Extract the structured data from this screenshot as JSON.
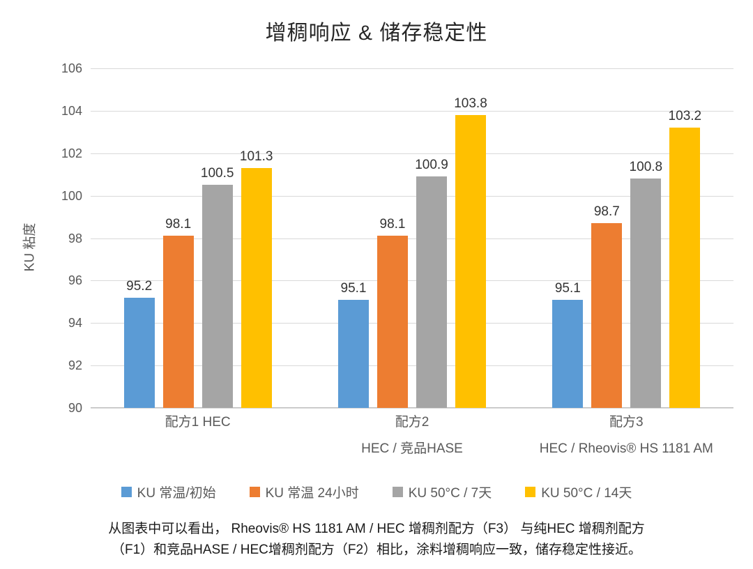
{
  "chart_data": {
    "type": "bar",
    "title": "增稠响应 & 储存稳定性",
    "xlabel": "",
    "ylabel": "KU 粘度",
    "ylim": [
      90,
      106
    ],
    "yticks": [
      90,
      92,
      94,
      96,
      98,
      100,
      102,
      104,
      106
    ],
    "grid": true,
    "legend_position": "bottom",
    "categories": [
      {
        "line1": "配方1  HEC",
        "line2": ""
      },
      {
        "line1": "配方2",
        "line2": "HEC / 竞品HASE"
      },
      {
        "line1": "配方3",
        "line2": "HEC / Rheovis® HS 1181 AM"
      }
    ],
    "series": [
      {
        "name": "KU 常温/初始",
        "color": "#5B9BD5",
        "values": [
          95.2,
          95.1,
          95.1
        ]
      },
      {
        "name": "KU 常温 24小时",
        "color": "#ED7D31",
        "values": [
          98.1,
          98.1,
          98.7
        ]
      },
      {
        "name": "KU 50°C / 7天",
        "color": "#A5A5A5",
        "values": [
          100.5,
          100.9,
          100.8
        ]
      },
      {
        "name": "KU 50°C / 14天",
        "color": "#FFC000",
        "values": [
          101.3,
          103.8,
          103.2
        ]
      }
    ]
  },
  "footer": {
    "line1": "从图表中可以看出， Rheovis® HS 1181 AM / HEC 增稠剂配方（F3） 与纯HEC 增稠剂配方",
    "line2": "（F1）和竞品HASE / HEC增稠剂配方（F2）相比，涂料增稠响应一致，储存稳定性接近。"
  }
}
